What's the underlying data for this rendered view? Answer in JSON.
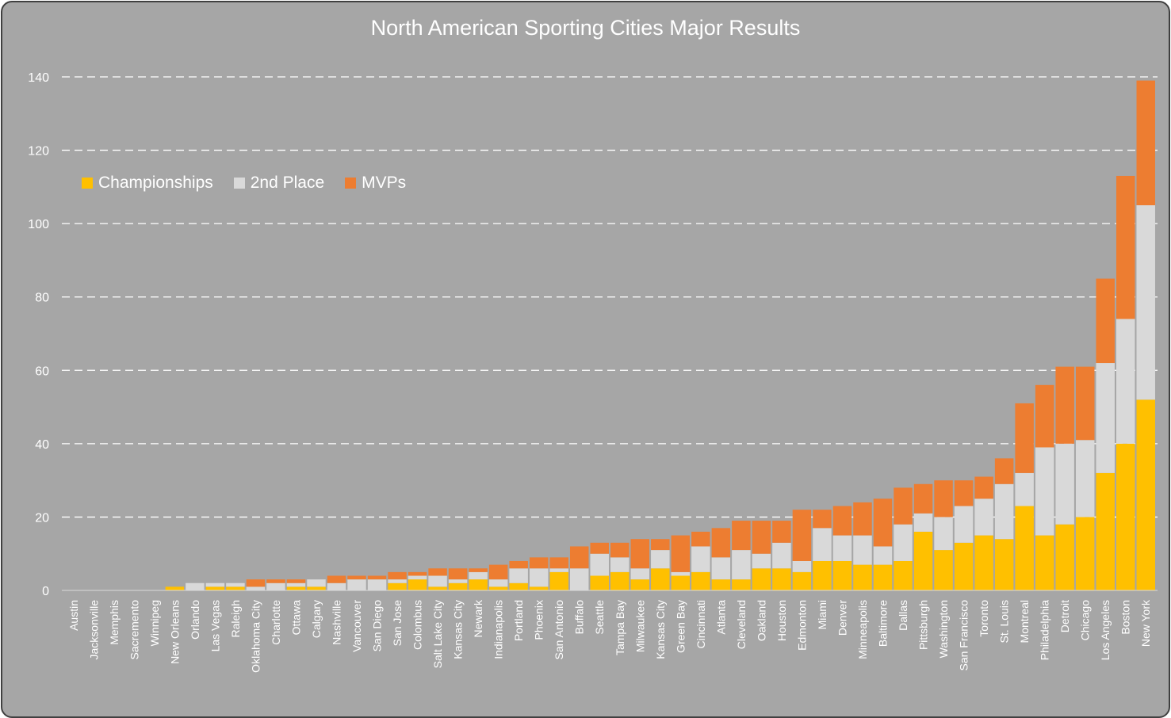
{
  "chart_data": {
    "type": "bar",
    "stacked": true,
    "title": "North American Sporting Cities Major Results",
    "xlabel": "",
    "ylabel": "",
    "ylim": [
      0,
      140
    ],
    "yticks": [
      0,
      20,
      40,
      60,
      80,
      100,
      120,
      140
    ],
    "grid": "horizontal dashed",
    "legend": "top-left",
    "categories": [
      "Austin",
      "Jacksonville",
      "Memphis",
      "Sacremento",
      "Winnipeg",
      "New Orleans",
      "Orlando",
      "Las Vegas",
      "Raleigh",
      "Oklahoma City",
      "Charlotte",
      "Ottawa",
      "Calgary",
      "Nashville",
      "Vancouver",
      "San Diego",
      "San Jose",
      "Colombus",
      "Salt Lake City",
      "Kansas City",
      "Newark",
      "Indianapolis",
      "Portland",
      "Phoenix",
      "San Antonio",
      "Buffalo",
      "Seattle",
      "Tampa Bay",
      "Milwaukee",
      "Kansas City",
      "Green Bay",
      "Cincinnati",
      "Atlanta",
      "Cleveland",
      "Oakland",
      "Houston",
      "Edmonton",
      "Miami",
      "Denver",
      "Minneapolis",
      "Baltimore",
      "Dallas",
      "Pittsburgh",
      "Washington",
      "San Francisco",
      "Toronto",
      "St. Louis",
      "Montreal",
      "Philadelphia",
      "Detroit",
      "Chicago",
      "Los Angeles",
      "Boston",
      "New York"
    ],
    "series": [
      {
        "name": "Championships",
        "color": "#ffc000",
        "values": [
          0,
          0,
          0,
          0,
          0,
          1,
          0,
          1,
          1,
          0,
          0,
          1,
          1,
          0,
          0,
          0,
          2,
          3,
          1,
          2,
          3,
          1,
          2,
          1,
          5,
          0,
          4,
          5,
          3,
          6,
          4,
          5,
          3,
          3,
          6,
          6,
          5,
          8,
          8,
          7,
          7,
          8,
          16,
          11,
          13,
          15,
          14,
          23,
          15,
          18,
          20,
          32,
          40,
          52
        ]
      },
      {
        "name": "2nd Place",
        "color": "#d9d9d9",
        "values": [
          0,
          0,
          0,
          0,
          0,
          0,
          2,
          1,
          1,
          1,
          2,
          1,
          2,
          2,
          3,
          3,
          1,
          1,
          3,
          1,
          2,
          2,
          4,
          5,
          1,
          6,
          6,
          4,
          3,
          5,
          1,
          7,
          6,
          8,
          4,
          7,
          3,
          9,
          7,
          8,
          5,
          10,
          5,
          9,
          10,
          10,
          15,
          9,
          24,
          22,
          21,
          30,
          34,
          53
        ]
      },
      {
        "name": "MVPs",
        "color": "#ed7d31",
        "values": [
          0,
          0,
          0,
          0,
          0,
          0,
          0,
          0,
          0,
          2,
          1,
          1,
          0,
          2,
          1,
          1,
          2,
          1,
          2,
          3,
          1,
          4,
          2,
          3,
          3,
          6,
          3,
          4,
          8,
          3,
          10,
          4,
          8,
          8,
          9,
          6,
          14,
          5,
          8,
          9,
          13,
          10,
          8,
          10,
          7,
          6,
          7,
          19,
          17,
          21,
          20,
          23,
          39,
          34
        ]
      }
    ]
  }
}
